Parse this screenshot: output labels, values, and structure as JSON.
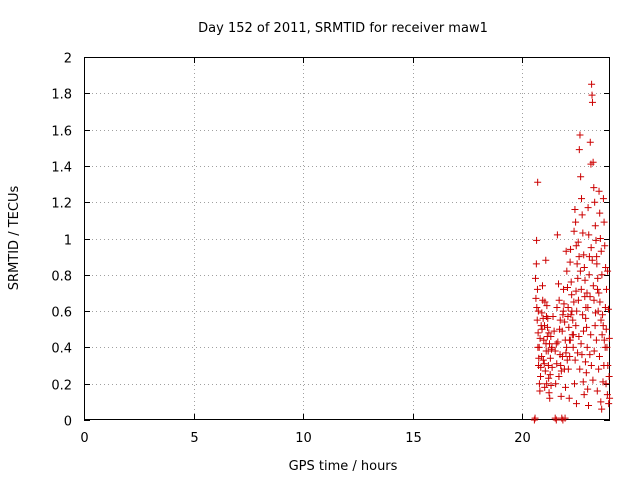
{
  "colors": {
    "series": "#cc0000",
    "grid": "#a0a0a0"
  },
  "chart_data": {
    "type": "scatter",
    "title": "Day 152 of 2011, SRMTID for receiver maw1",
    "xlabel": "GPS time / hours",
    "ylabel": "SRMTID / TECUs",
    "xlim": [
      0,
      24
    ],
    "ylim": [
      0,
      2
    ],
    "xticks": [
      0,
      5,
      10,
      15,
      20
    ],
    "yticks": [
      0,
      0.2,
      0.4,
      0.6,
      0.8,
      1,
      1.2,
      1.4,
      1.6,
      1.8,
      2
    ],
    "xtick_labels": [
      "0",
      "5",
      "10",
      "15",
      "20"
    ],
    "ytick_labels": [
      "0",
      "0.2",
      "0.4",
      "0.6",
      "0.8",
      "1",
      "1.2",
      "1.4",
      "1.6",
      "1.8",
      "2"
    ],
    "grid": true,
    "marker": "plus",
    "series": [
      {
        "name": "SRMTID",
        "points": [
          [
            20.55,
            0.0
          ],
          [
            20.58,
            0.01
          ],
          [
            21.5,
            0.01
          ],
          [
            21.55,
            0.0
          ],
          [
            21.8,
            0.01
          ],
          [
            21.85,
            0.0
          ],
          [
            21.95,
            0.01
          ],
          [
            20.65,
            0.99
          ],
          [
            20.7,
            1.31
          ],
          [
            20.6,
            0.78
          ],
          [
            20.62,
            0.67
          ],
          [
            20.68,
            0.55
          ],
          [
            20.72,
            0.48
          ],
          [
            20.75,
            0.34
          ],
          [
            20.78,
            0.2
          ],
          [
            20.8,
            0.16
          ],
          [
            20.83,
            0.24
          ],
          [
            20.86,
            0.52
          ],
          [
            20.89,
            0.59
          ],
          [
            20.92,
            0.74
          ],
          [
            20.95,
            0.56
          ],
          [
            20.98,
            0.44
          ],
          [
            21.0,
            0.31
          ],
          [
            21.02,
            0.18
          ],
          [
            21.05,
            0.27
          ],
          [
            21.08,
            0.42
          ],
          [
            21.1,
            0.57
          ],
          [
            21.12,
            0.63
          ],
          [
            21.15,
            0.51
          ],
          [
            21.18,
            0.38
          ],
          [
            21.2,
            0.23
          ],
          [
            21.22,
            0.15
          ],
          [
            21.25,
            0.12
          ],
          [
            21.28,
            0.34
          ],
          [
            21.3,
            0.46
          ],
          [
            21.33,
            0.39
          ],
          [
            21.36,
            0.29
          ],
          [
            20.66,
            0.62
          ],
          [
            20.71,
            0.4
          ],
          [
            20.74,
            0.3
          ],
          [
            20.81,
            0.45
          ],
          [
            20.88,
            0.35
          ],
          [
            20.93,
            0.66
          ],
          [
            21.01,
            0.52
          ],
          [
            21.07,
            0.88
          ],
          [
            21.11,
            0.2
          ],
          [
            21.16,
            0.56
          ],
          [
            21.21,
            0.48
          ],
          [
            21.27,
            0.25
          ],
          [
            21.4,
            0.57
          ],
          [
            21.45,
            0.49
          ],
          [
            21.5,
            0.38
          ],
          [
            21.55,
            0.42
          ],
          [
            21.58,
            0.62
          ],
          [
            21.6,
            1.02
          ],
          [
            21.65,
            0.75
          ],
          [
            21.68,
            0.66
          ],
          [
            21.7,
            0.5
          ],
          [
            21.72,
            0.36
          ],
          [
            21.75,
            0.3
          ],
          [
            21.78,
            0.27
          ],
          [
            21.82,
            0.49
          ],
          [
            21.85,
            0.58
          ],
          [
            21.88,
            0.72
          ],
          [
            21.9,
            0.64
          ],
          [
            21.93,
            0.54
          ],
          [
            21.96,
            0.44
          ],
          [
            21.99,
            0.37
          ],
          [
            22.0,
            0.93
          ],
          [
            22.03,
            0.82
          ],
          [
            22.06,
            0.73
          ],
          [
            22.09,
            0.62
          ],
          [
            22.12,
            0.51
          ],
          [
            22.15,
            0.44
          ],
          [
            22.18,
            0.87
          ],
          [
            22.2,
            0.94
          ],
          [
            22.23,
            0.76
          ],
          [
            22.26,
            0.6
          ],
          [
            22.3,
            0.55
          ],
          [
            22.33,
            0.47
          ],
          [
            22.36,
            1.04
          ],
          [
            22.4,
            1.16
          ],
          [
            22.43,
            1.09
          ],
          [
            22.46,
            0.96
          ],
          [
            22.5,
            0.86
          ],
          [
            22.53,
            0.78
          ],
          [
            22.56,
            0.66
          ],
          [
            22.6,
            1.49
          ],
          [
            22.63,
            1.57
          ],
          [
            22.66,
            1.34
          ],
          [
            22.7,
            1.22
          ],
          [
            22.73,
            1.13
          ],
          [
            22.76,
            1.03
          ],
          [
            22.8,
            0.91
          ],
          [
            22.83,
            0.84
          ],
          [
            22.86,
            0.77
          ],
          [
            22.9,
            0.62
          ],
          [
            22.93,
            0.51
          ],
          [
            22.96,
            0.4
          ],
          [
            23.0,
            1.17
          ],
          [
            23.03,
            1.02
          ],
          [
            23.06,
            0.9
          ],
          [
            23.1,
            1.53
          ],
          [
            23.13,
            1.41
          ],
          [
            23.16,
            1.85
          ],
          [
            23.18,
            1.79
          ],
          [
            23.2,
            1.75
          ],
          [
            23.23,
            1.42
          ],
          [
            23.26,
            1.28
          ],
          [
            23.3,
            1.2
          ],
          [
            23.33,
            1.07
          ],
          [
            23.36,
            0.99
          ],
          [
            23.4,
            0.86
          ],
          [
            23.43,
            0.72
          ],
          [
            23.46,
            0.6
          ],
          [
            23.5,
            1.26
          ],
          [
            23.53,
            1.14
          ],
          [
            23.56,
            1.0
          ],
          [
            23.6,
            0.93
          ],
          [
            23.63,
            0.8
          ],
          [
            23.66,
            0.58
          ],
          [
            23.7,
            1.22
          ],
          [
            23.73,
            1.09
          ],
          [
            23.76,
            0.96
          ],
          [
            23.8,
            0.84
          ],
          [
            23.83,
            0.5
          ],
          [
            23.86,
            0.4
          ],
          [
            23.9,
            0.3
          ],
          [
            23.93,
            0.61
          ],
          [
            23.96,
            0.24
          ],
          [
            23.98,
            0.12
          ],
          [
            22.38,
            0.2
          ],
          [
            22.41,
            0.33
          ],
          [
            22.44,
            0.52
          ],
          [
            22.47,
            0.09
          ],
          [
            22.52,
            0.37
          ],
          [
            22.58,
            0.46
          ],
          [
            22.62,
            0.28
          ],
          [
            22.68,
            0.42
          ],
          [
            22.72,
            0.36
          ],
          [
            22.78,
            0.21
          ],
          [
            22.82,
            0.14
          ],
          [
            22.88,
            0.32
          ],
          [
            22.92,
            0.26
          ],
          [
            22.98,
            0.17
          ],
          [
            23.02,
            0.08
          ],
          [
            23.08,
            0.36
          ],
          [
            23.12,
            0.47
          ],
          [
            23.15,
            0.3
          ],
          [
            23.22,
            0.22
          ],
          [
            23.28,
            0.38
          ],
          [
            23.32,
            0.52
          ],
          [
            23.38,
            0.44
          ],
          [
            23.42,
            0.16
          ],
          [
            23.48,
            0.28
          ],
          [
            23.52,
            0.35
          ],
          [
            23.58,
            0.1
          ],
          [
            23.62,
            0.06
          ],
          [
            23.68,
            0.21
          ],
          [
            23.72,
            0.3
          ],
          [
            23.78,
            0.4
          ],
          [
            23.82,
            0.2
          ],
          [
            23.88,
            0.14
          ],
          [
            23.94,
            0.09
          ],
          [
            23.97,
            0.45
          ],
          [
            22.05,
            0.33
          ],
          [
            22.1,
            0.28
          ],
          [
            22.14,
            0.12
          ],
          [
            22.22,
            0.58
          ],
          [
            22.25,
            0.69
          ],
          [
            22.28,
            0.47
          ],
          [
            22.32,
            0.4
          ],
          [
            22.35,
            0.65
          ],
          [
            22.45,
            0.71
          ],
          [
            22.48,
            0.6
          ],
          [
            22.55,
            0.98
          ],
          [
            22.59,
            0.9
          ],
          [
            22.65,
            0.82
          ],
          [
            22.69,
            0.72
          ],
          [
            22.75,
            0.58
          ],
          [
            22.79,
            0.49
          ],
          [
            22.85,
            0.68
          ],
          [
            22.89,
            0.56
          ],
          [
            22.95,
            0.7
          ],
          [
            22.99,
            0.62
          ],
          [
            23.05,
            0.8
          ],
          [
            23.09,
            0.68
          ],
          [
            23.14,
            0.95
          ],
          [
            23.19,
            0.88
          ],
          [
            23.24,
            0.74
          ],
          [
            23.27,
            0.66
          ],
          [
            23.34,
            0.59
          ],
          [
            23.39,
            0.9
          ],
          [
            23.44,
            0.78
          ],
          [
            23.49,
            0.7
          ],
          [
            23.54,
            0.65
          ],
          [
            23.59,
            0.55
          ],
          [
            23.64,
            0.47
          ],
          [
            23.69,
            0.52
          ],
          [
            23.74,
            0.44
          ],
          [
            23.79,
            0.62
          ],
          [
            23.84,
            0.72
          ],
          [
            23.89,
            0.82
          ],
          [
            21.52,
            0.2
          ],
          [
            21.57,
            0.31
          ],
          [
            21.62,
            0.43
          ],
          [
            21.67,
            0.24
          ],
          [
            21.73,
            0.55
          ],
          [
            21.77,
            0.13
          ],
          [
            21.83,
            0.35
          ],
          [
            21.87,
            0.6
          ],
          [
            21.92,
            0.28
          ],
          [
            21.97,
            0.18
          ],
          [
            22.02,
            0.4
          ],
          [
            22.08,
            0.57
          ],
          [
            22.16,
            0.35
          ],
          [
            22.19,
            0.44
          ],
          [
            20.64,
            0.86
          ],
          [
            20.69,
            0.72
          ],
          [
            20.73,
            0.6
          ],
          [
            20.77,
            0.4
          ],
          [
            20.84,
            0.29
          ],
          [
            20.9,
            0.5
          ],
          [
            20.96,
            0.33
          ],
          [
            21.03,
            0.65
          ],
          [
            21.09,
            0.38
          ],
          [
            21.14,
            0.46
          ],
          [
            21.19,
            0.3
          ],
          [
            21.24,
            0.42
          ],
          [
            21.31,
            0.19
          ],
          [
            21.35,
            0.4
          ]
        ]
      }
    ]
  }
}
